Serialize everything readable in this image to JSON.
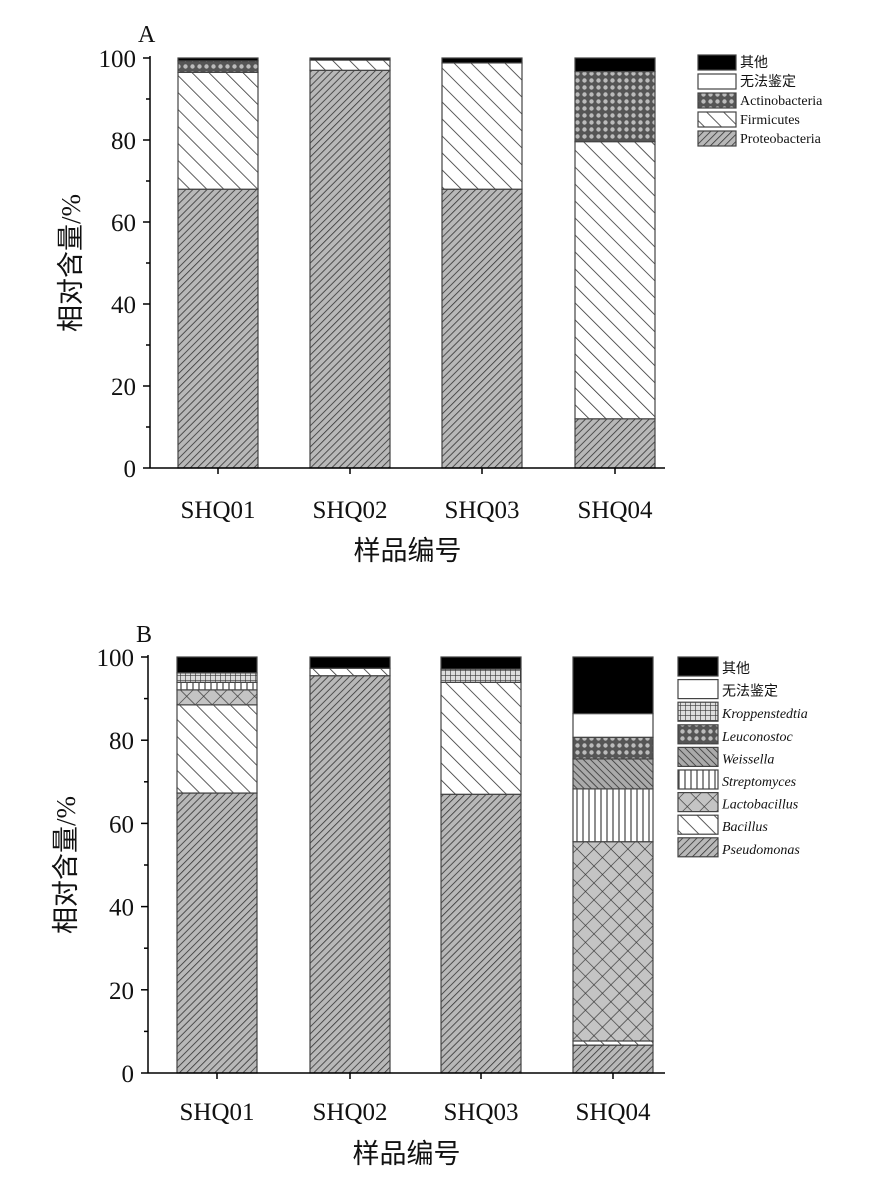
{
  "chart_data": [
    {
      "type": "bar",
      "stacked": true,
      "panel_label": "A",
      "title": "",
      "xlabel": "样品编号",
      "ylabel": "相对含量/%",
      "ylim": [
        0,
        100
      ],
      "yticks": [
        "0",
        "20",
        "40",
        "60",
        "80",
        "100"
      ],
      "categories": [
        "SHQ01",
        "SHQ02",
        "SHQ03",
        "SHQ04"
      ],
      "legend_position": "top-right",
      "series": [
        {
          "name": "Proteobacteria",
          "pattern": "dense-diag",
          "italic": false,
          "values": [
            68,
            97,
            68,
            12
          ]
        },
        {
          "name": "Firmicutes",
          "pattern": "wide-diag",
          "italic": false,
          "values": [
            28.5,
            2.5,
            30.8,
            67.6
          ]
        },
        {
          "name": "Actinobacteria",
          "pattern": "dots",
          "italic": false,
          "values": [
            2.8,
            0,
            0,
            17.1
          ]
        },
        {
          "name": "无法鉴定",
          "pattern": "white",
          "italic": false,
          "values": [
            0,
            0,
            0,
            0
          ]
        },
        {
          "name": "其他",
          "pattern": "black",
          "italic": false,
          "values": [
            0.7,
            0.5,
            1.2,
            3.3
          ]
        }
      ]
    },
    {
      "type": "bar",
      "stacked": true,
      "panel_label": "B",
      "title": "",
      "xlabel": "样品编号",
      "ylabel": "相对含量/%",
      "ylim": [
        0,
        100
      ],
      "yticks": [
        "0",
        "20",
        "40",
        "60",
        "80",
        "100"
      ],
      "categories": [
        "SHQ01",
        "SHQ02",
        "SHQ03",
        "SHQ04"
      ],
      "legend_position": "top-right",
      "series": [
        {
          "name": "Pseudomonas",
          "pattern": "dense-diag",
          "italic": true,
          "values": [
            67.3,
            95.5,
            67,
            6.7
          ]
        },
        {
          "name": "Bacillus",
          "pattern": "wide-diag",
          "italic": true,
          "values": [
            21.2,
            1.8,
            26.9,
            1.0
          ]
        },
        {
          "name": "Lactobacillus",
          "pattern": "crosshatch",
          "italic": true,
          "values": [
            3.6,
            0,
            0,
            47.9
          ]
        },
        {
          "name": "Streptomyces",
          "pattern": "vertical",
          "italic": true,
          "values": [
            1.8,
            0,
            0,
            12.7
          ]
        },
        {
          "name": "Weissella",
          "pattern": "weissella",
          "italic": true,
          "values": [
            0,
            0,
            0,
            7.2
          ]
        },
        {
          "name": "Leuconostoc",
          "pattern": "dots",
          "italic": true,
          "values": [
            0,
            0,
            0,
            5.2
          ]
        },
        {
          "name": "Kroppenstedtia",
          "pattern": "grid",
          "italic": true,
          "values": [
            2.3,
            0,
            3.2,
            0
          ]
        },
        {
          "name": "无法鉴定",
          "pattern": "white",
          "italic": false,
          "values": [
            0,
            0,
            0,
            5.7
          ]
        },
        {
          "name": "其他",
          "pattern": "black",
          "italic": false,
          "values": [
            3.8,
            2.7,
            2.9,
            13.6
          ]
        }
      ]
    }
  ]
}
